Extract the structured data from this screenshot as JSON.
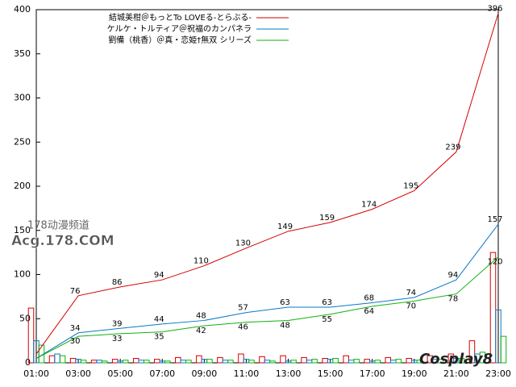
{
  "chart_data": {
    "type": "line",
    "xlim": [
      1,
      23
    ],
    "xticks": [
      {
        "value": 1,
        "label": "01:00"
      },
      {
        "value": 3,
        "label": "03:00"
      },
      {
        "value": 5,
        "label": "05:00"
      },
      {
        "value": 7,
        "label": "07:00"
      },
      {
        "value": 9,
        "label": "09:00"
      },
      {
        "value": 11,
        "label": "11:00"
      },
      {
        "value": 13,
        "label": "13:00"
      },
      {
        "value": 15,
        "label": "15:00"
      },
      {
        "value": 17,
        "label": "17:00"
      },
      {
        "value": 19,
        "label": "19:00"
      },
      {
        "value": 21,
        "label": "21:00"
      },
      {
        "value": 23,
        "label": "23:00"
      }
    ],
    "ylim": [
      0,
      400
    ],
    "yticks": [
      0,
      50,
      100,
      150,
      200,
      250,
      300,
      350,
      400
    ],
    "x": [
      1,
      3,
      5,
      7,
      9,
      11,
      13,
      15,
      17,
      19,
      21,
      23
    ],
    "series": [
      {
        "name": "結城美柑＠もっとTo LOVEる-とらぶる-",
        "color": "#d40000",
        "values": [
          10,
          76,
          86,
          94,
          110,
          130,
          149,
          159,
          174,
          195,
          239,
          396
        ]
      },
      {
        "name": "ケルケ・トルティア＠祝福のカンパネラ",
        "color": "#0a78c8",
        "values": [
          5,
          34,
          39,
          44,
          48,
          57,
          63,
          63,
          68,
          74,
          94,
          157
        ]
      },
      {
        "name": "劉備（桃香）＠真・恋姫†無双 シリーズ",
        "color": "#10b010",
        "values": [
          5,
          30,
          33,
          35,
          42,
          46,
          48,
          55,
          64,
          70,
          78,
          120
        ]
      }
    ],
    "bars": {
      "x": [
        1,
        2,
        3,
        4,
        5,
        6,
        7,
        8,
        9,
        10,
        11,
        12,
        13,
        14,
        15,
        16,
        17,
        18,
        19,
        20,
        21,
        22,
        23
      ],
      "series": [
        [
          62,
          8,
          5,
          3,
          4,
          5,
          4,
          6,
          8,
          6,
          10,
          7,
          8,
          6,
          5,
          8,
          4,
          6,
          5,
          8,
          10,
          25,
          125
        ],
        [
          25,
          10,
          4,
          3,
          2,
          3,
          2,
          3,
          4,
          3,
          4,
          3,
          2,
          3,
          4,
          3,
          2,
          3,
          3,
          4,
          5,
          10,
          60
        ],
        [
          20,
          8,
          3,
          2,
          3,
          3,
          2,
          3,
          4,
          3,
          3,
          2,
          3,
          4,
          5,
          4,
          3,
          4,
          3,
          4,
          5,
          12,
          30
        ]
      ]
    },
    "watermarks": [
      "178动漫频道",
      "Acg.178.COM",
      "Cosplay8"
    ]
  }
}
